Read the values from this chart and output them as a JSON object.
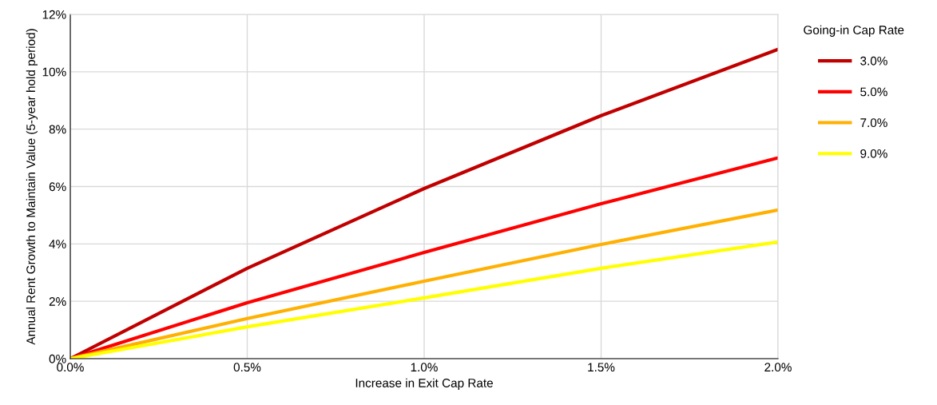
{
  "chart_data": {
    "type": "line",
    "xlabel": "Increase in Exit Cap Rate",
    "ylabel": "Annual Rent Growth to Maintain Value (5-year hold period)",
    "legend_title": "Going-in Cap Rate",
    "legend": "right",
    "grid": true,
    "marker": "none",
    "line_style": "solid",
    "x": [
      0,
      0.5,
      1.0,
      1.5,
      2.0
    ],
    "xlim": [
      0,
      2.0
    ],
    "xticks": [
      {
        "value": 0,
        "label": "0.0%"
      },
      {
        "value": 0.5,
        "label": "0.5%"
      },
      {
        "value": 1.0,
        "label": "1.0%"
      },
      {
        "value": 1.5,
        "label": "1.5%"
      },
      {
        "value": 2.0,
        "label": "2.0%"
      }
    ],
    "ylim": [
      0,
      12
    ],
    "yticks": [
      {
        "value": 0,
        "label": "0%"
      },
      {
        "value": 2,
        "label": "2%"
      },
      {
        "value": 4,
        "label": "4%"
      },
      {
        "value": 6,
        "label": "6%"
      },
      {
        "value": 8,
        "label": "8%"
      },
      {
        "value": 10,
        "label": "10%"
      },
      {
        "value": 12,
        "label": "12%"
      }
    ],
    "series": [
      {
        "name": "3.0%",
        "color": "#c00000",
        "values": [
          0,
          3.15,
          5.93,
          8.47,
          10.78
        ]
      },
      {
        "name": "5.0%",
        "color": "#ff0000",
        "values": [
          0,
          1.95,
          3.7,
          5.4,
          7.0
        ]
      },
      {
        "name": "7.0%",
        "color": "#ffb000",
        "values": [
          0,
          1.4,
          2.7,
          3.98,
          5.18
        ]
      },
      {
        "name": "9.0%",
        "color": "#ffff00",
        "values": [
          0,
          1.11,
          2.12,
          3.15,
          4.07
        ]
      }
    ]
  }
}
